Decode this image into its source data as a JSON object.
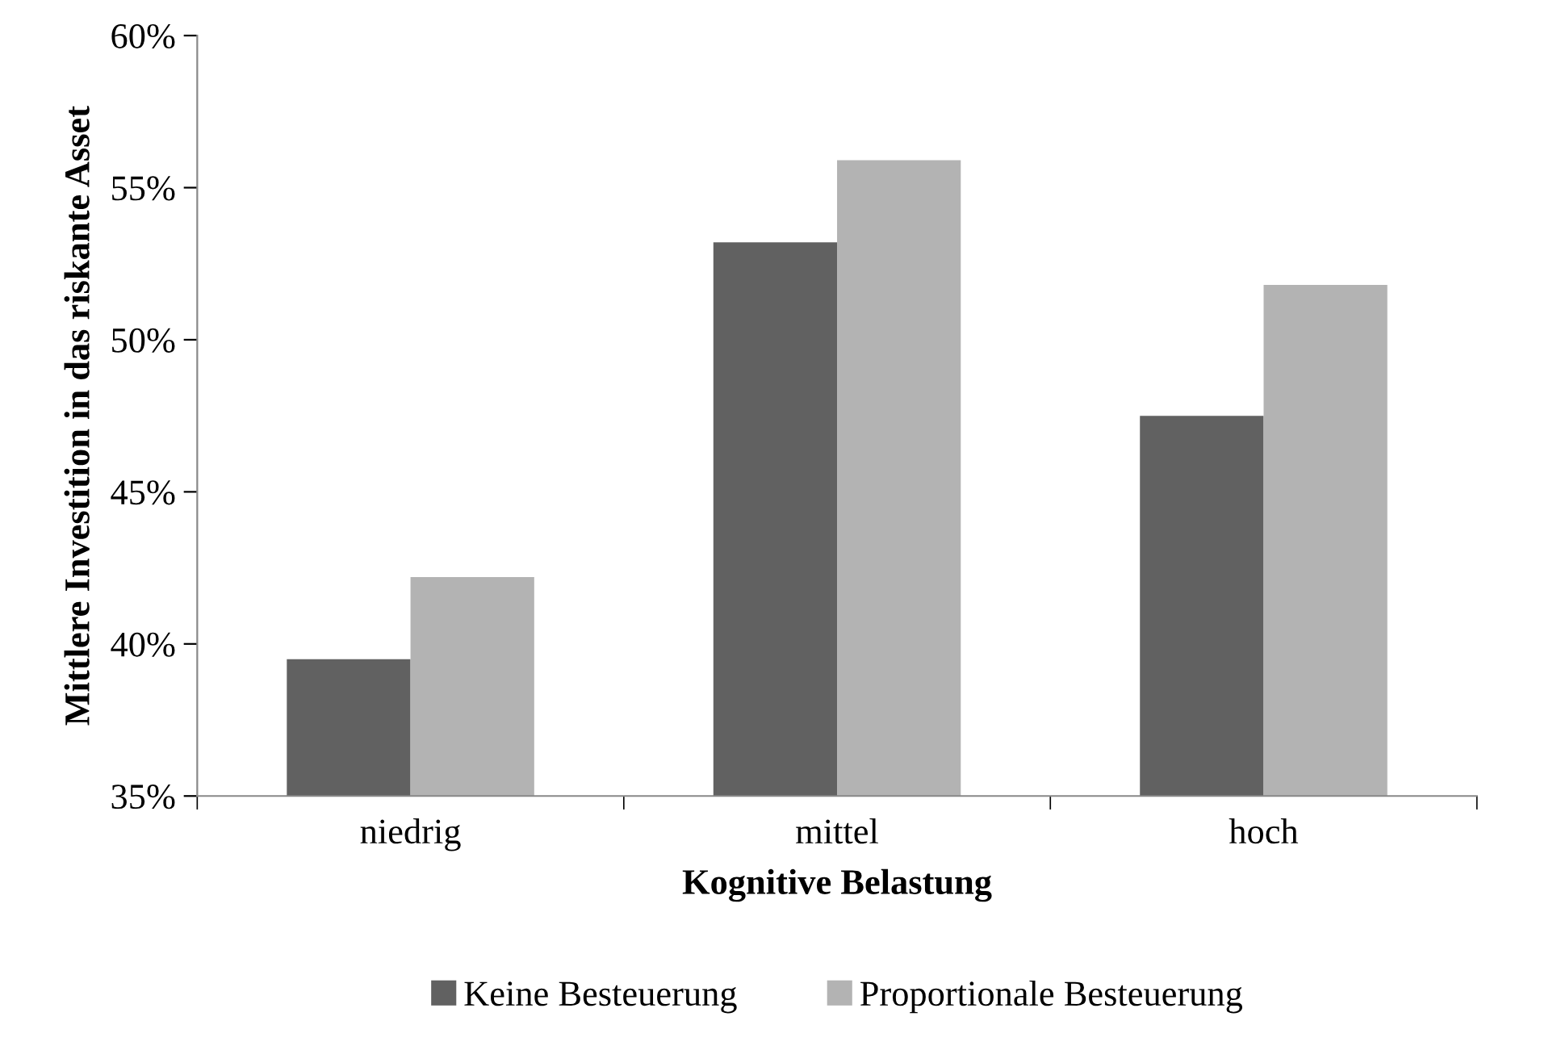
{
  "chart_data": {
    "type": "bar",
    "xlabel": "Kognitive Belastung",
    "ylabel": "Mittlere Investition in das riskante Asset",
    "categories": [
      "niedrig",
      "mittel",
      "hoch"
    ],
    "series": [
      {
        "name": "Keine Besteuerung",
        "color": "#616161",
        "values": [
          39.5,
          53.2,
          47.5
        ]
      },
      {
        "name": "Proportionale Besteuerung",
        "color": "#b3b3b3",
        "values": [
          42.2,
          55.9,
          51.8
        ]
      }
    ],
    "ylim": [
      35,
      60
    ],
    "yticks": [
      {
        "value": 35,
        "label": "35%"
      },
      {
        "value": 40,
        "label": "40%"
      },
      {
        "value": 45,
        "label": "45%"
      },
      {
        "value": 50,
        "label": "50%"
      },
      {
        "value": 55,
        "label": "55%"
      },
      {
        "value": 60,
        "label": "60%"
      }
    ],
    "grid": false,
    "legend": "bottom"
  }
}
